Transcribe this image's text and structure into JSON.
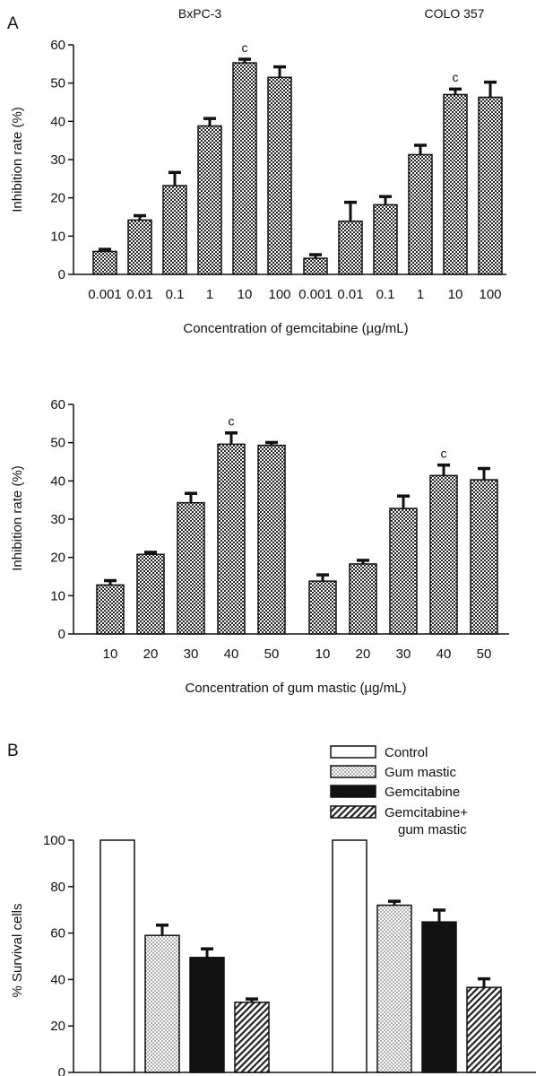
{
  "panel_labels": {
    "a": "A",
    "b": "B"
  },
  "chart_data": [
    {
      "id": "gemcitabine",
      "type": "bar",
      "ylabel": "Inhibition rate (%)",
      "xlabel": "Concentration of gemcitabine (µg/mL)",
      "ylim": [
        0,
        60
      ],
      "yticks": [
        0,
        10,
        20,
        30,
        40,
        50,
        60
      ],
      "groups": [
        {
          "name": "BxPC-3",
          "categories": [
            "0.001",
            "0.01",
            "0.1",
            "1",
            "10",
            "100"
          ],
          "values": [
            6,
            14.2,
            23.2,
            38.8,
            55.3,
            51.5
          ],
          "errors": [
            0.6,
            1.2,
            3.5,
            2.0,
            1.0,
            2.8
          ],
          "annotations": [
            "",
            "",
            "",
            "",
            "c",
            ""
          ]
        },
        {
          "name": "COLO 357",
          "categories": [
            "0.001",
            "0.01",
            "0.1",
            "1",
            "10",
            "100"
          ],
          "values": [
            4.2,
            13.9,
            18.2,
            31.3,
            47.0,
            46.3
          ],
          "errors": [
            1.0,
            5.0,
            2.2,
            2.5,
            1.5,
            4.0
          ],
          "annotations": [
            "",
            "",
            "",
            "",
            "c",
            ""
          ]
        }
      ]
    },
    {
      "id": "gum_mastic",
      "type": "bar",
      "ylabel": "Inhibition rate (%)",
      "xlabel": "Concentration of gum mastic (µg/mL)",
      "ylim": [
        0,
        60
      ],
      "yticks": [
        0,
        10,
        20,
        30,
        40,
        50,
        60
      ],
      "groups": [
        {
          "name": "",
          "categories": [
            "10",
            "20",
            "30",
            "40",
            "50"
          ],
          "values": [
            12.8,
            20.8,
            34.3,
            49.6,
            49.3
          ],
          "errors": [
            1.2,
            0.6,
            2.5,
            3.0,
            0.8
          ],
          "annotations": [
            "",
            "",
            "",
            "c",
            ""
          ]
        },
        {
          "name": "",
          "categories": [
            "10",
            "20",
            "30",
            "40",
            "50"
          ],
          "values": [
            13.8,
            18.3,
            32.8,
            41.4,
            40.3
          ],
          "errors": [
            1.7,
            1.0,
            3.3,
            2.8,
            3.0
          ],
          "annotations": [
            "",
            "",
            "",
            "c",
            ""
          ]
        }
      ]
    },
    {
      "id": "survival",
      "type": "bar",
      "ylabel": "% Survival cells",
      "ylim": [
        0,
        100
      ],
      "yticks": [
        0,
        20,
        40,
        60,
        80,
        100
      ],
      "legend": "top-right",
      "series": [
        {
          "name": "Control",
          "pattern": "white"
        },
        {
          "name": "Gum mastic",
          "pattern": "dots"
        },
        {
          "name": "Gemcitabine",
          "pattern": "black"
        },
        {
          "name": "Gemcitabine+ gum mastic",
          "pattern": "hatch"
        }
      ],
      "groups": [
        {
          "values": [
            100,
            59,
            49.5,
            30.2
          ],
          "errors": [
            0,
            4.5,
            3.8,
            1.5
          ]
        },
        {
          "values": [
            100,
            72,
            64.8,
            36.6
          ],
          "errors": [
            0,
            1.8,
            5.2,
            3.8
          ]
        }
      ]
    }
  ],
  "colors": {
    "ink": "#111111",
    "background": "#ffffff",
    "bar_fill_gray": "#7a7a7a"
  }
}
